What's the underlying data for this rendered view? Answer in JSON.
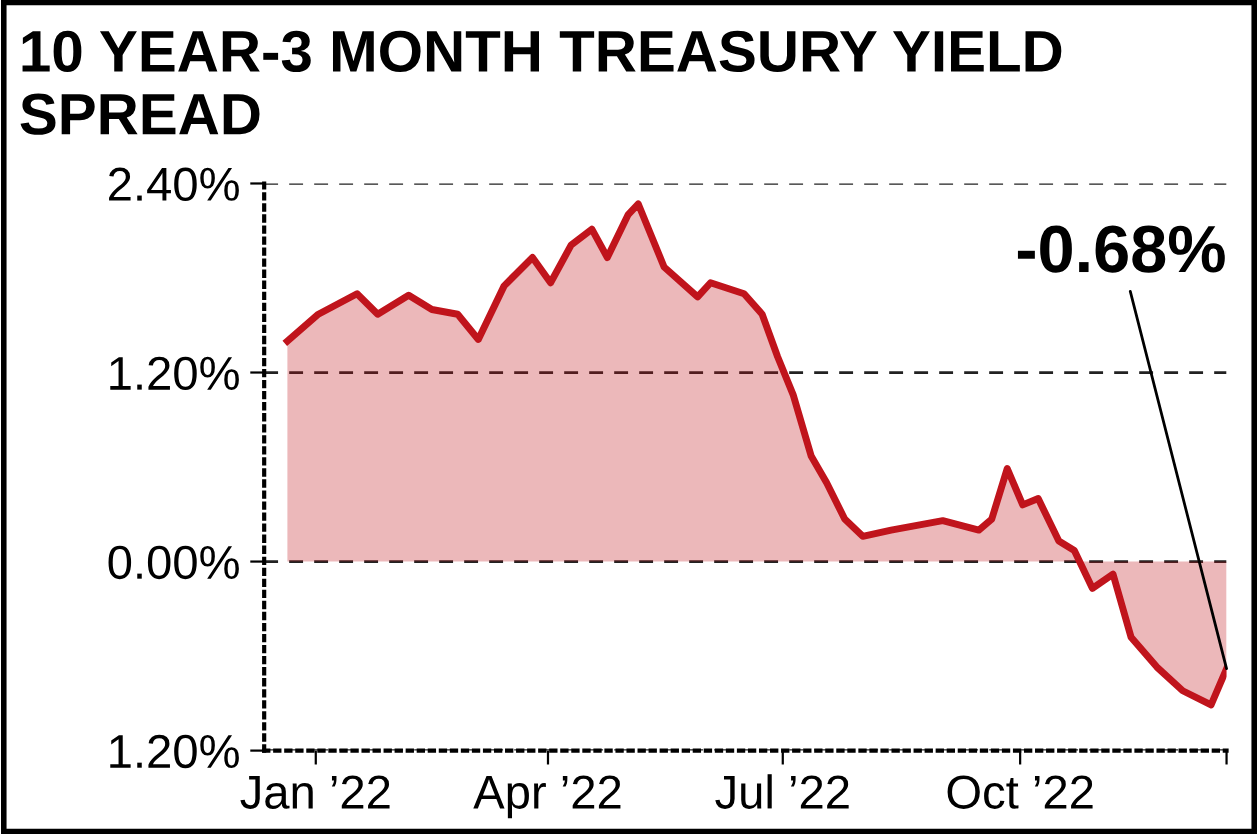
{
  "chart_data": {
    "type": "area",
    "title": "10 YEAR-3 MONTH TREASURY YIELD SPREAD",
    "x": [
      "2021-12-21",
      "2022-01-02",
      "2022-01-17",
      "2022-01-25",
      "2022-02-06",
      "2022-02-15",
      "2022-02-25",
      "2022-03-05",
      "2022-03-15",
      "2022-03-26",
      "2022-04-02",
      "2022-04-10",
      "2022-04-18",
      "2022-04-24",
      "2022-05-02",
      "2022-05-06",
      "2022-05-11",
      "2022-05-16",
      "2022-05-29",
      "2022-06-03",
      "2022-06-16",
      "2022-06-23",
      "2022-06-29",
      "2022-07-05",
      "2022-07-12",
      "2022-07-18",
      "2022-07-25",
      "2022-08-01",
      "2022-08-12",
      "2022-08-22",
      "2022-09-01",
      "2022-09-15",
      "2022-09-20",
      "2022-09-26",
      "2022-10-02",
      "2022-10-08",
      "2022-10-16",
      "2022-10-22",
      "2022-10-29",
      "2022-11-06",
      "2022-11-13",
      "2022-11-23",
      "2022-12-03",
      "2022-12-14",
      "2022-12-20"
    ],
    "series": [
      {
        "color": "#c0141c",
        "values": [
          1.4,
          1.57,
          1.7,
          1.57,
          1.69,
          1.6,
          1.57,
          1.41,
          1.75,
          1.93,
          1.77,
          2.01,
          2.11,
          1.93,
          2.2,
          2.27,
          2.07,
          1.87,
          1.68,
          1.77,
          1.7,
          1.57,
          1.3,
          1.06,
          0.67,
          0.5,
          0.27,
          0.16,
          0.2,
          0.23,
          0.26,
          0.2,
          0.27,
          0.59,
          0.36,
          0.4,
          0.13,
          0.07,
          -0.17,
          -0.08,
          -0.48,
          -0.67,
          -0.82,
          -0.91,
          -0.68
        ]
      }
    ],
    "xlim": [
      "2021-12-12",
      "2022-12-20"
    ],
    "xticks": [
      {
        "value": "2022-01-01",
        "label": "Jan ’22"
      },
      {
        "value": "2022-04-01",
        "label": "Apr ’22"
      },
      {
        "value": "2022-07-01",
        "label": "Jul ’22"
      },
      {
        "value": "2022-10-01",
        "label": "Oct ’22"
      },
      {
        "value": "2022-12-20",
        "label": null
      }
    ],
    "ylim": [
      -1.2,
      2.4
    ],
    "yticks": [
      {
        "value": -1.2,
        "label": "1.20%"
      },
      {
        "value": 0,
        "label": "0.00%"
      },
      {
        "value": 1.2,
        "label": "1.20%"
      },
      {
        "value": 2.4,
        "label": "2.40%"
      }
    ],
    "annotations": [
      {
        "text": "-0.68%",
        "x": "2022-12-20",
        "y": -0.68
      }
    ],
    "grid": "y",
    "legend": false,
    "line_style": "solid",
    "marker": "none"
  }
}
